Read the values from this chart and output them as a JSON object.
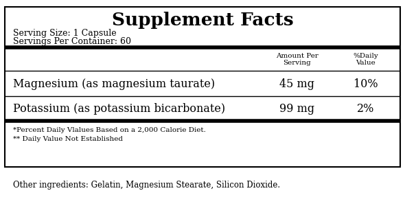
{
  "title": "Supplement Facts",
  "serving_size": "Serving Size: 1 Capsule",
  "servings_per_container": "Servings Per Container: 60",
  "col_header_1": "Amount Per\nServing",
  "col_header_2": "%Daily\nValue",
  "rows": [
    {
      "name": "Magnesium (as magnesium taurate)",
      "amount": "45 mg",
      "daily_value": "10%"
    },
    {
      "name": "Potassium (as potassium bicarbonate)",
      "amount": "99 mg",
      "daily_value": "2%"
    }
  ],
  "footnote_1": "*Percent Daily Vlalues Based on a 2,000 Calorie Diet.",
  "footnote_2": "** Daily Value Not Established",
  "other_ingredients": "Other ingredients: Gelatin, Magnesium Stearate, Silicon Dioxide.",
  "bg_color": "#ffffff",
  "border_color": "#000000",
  "text_color": "#000000",
  "fig_width": 5.9,
  "fig_height": 2.97
}
